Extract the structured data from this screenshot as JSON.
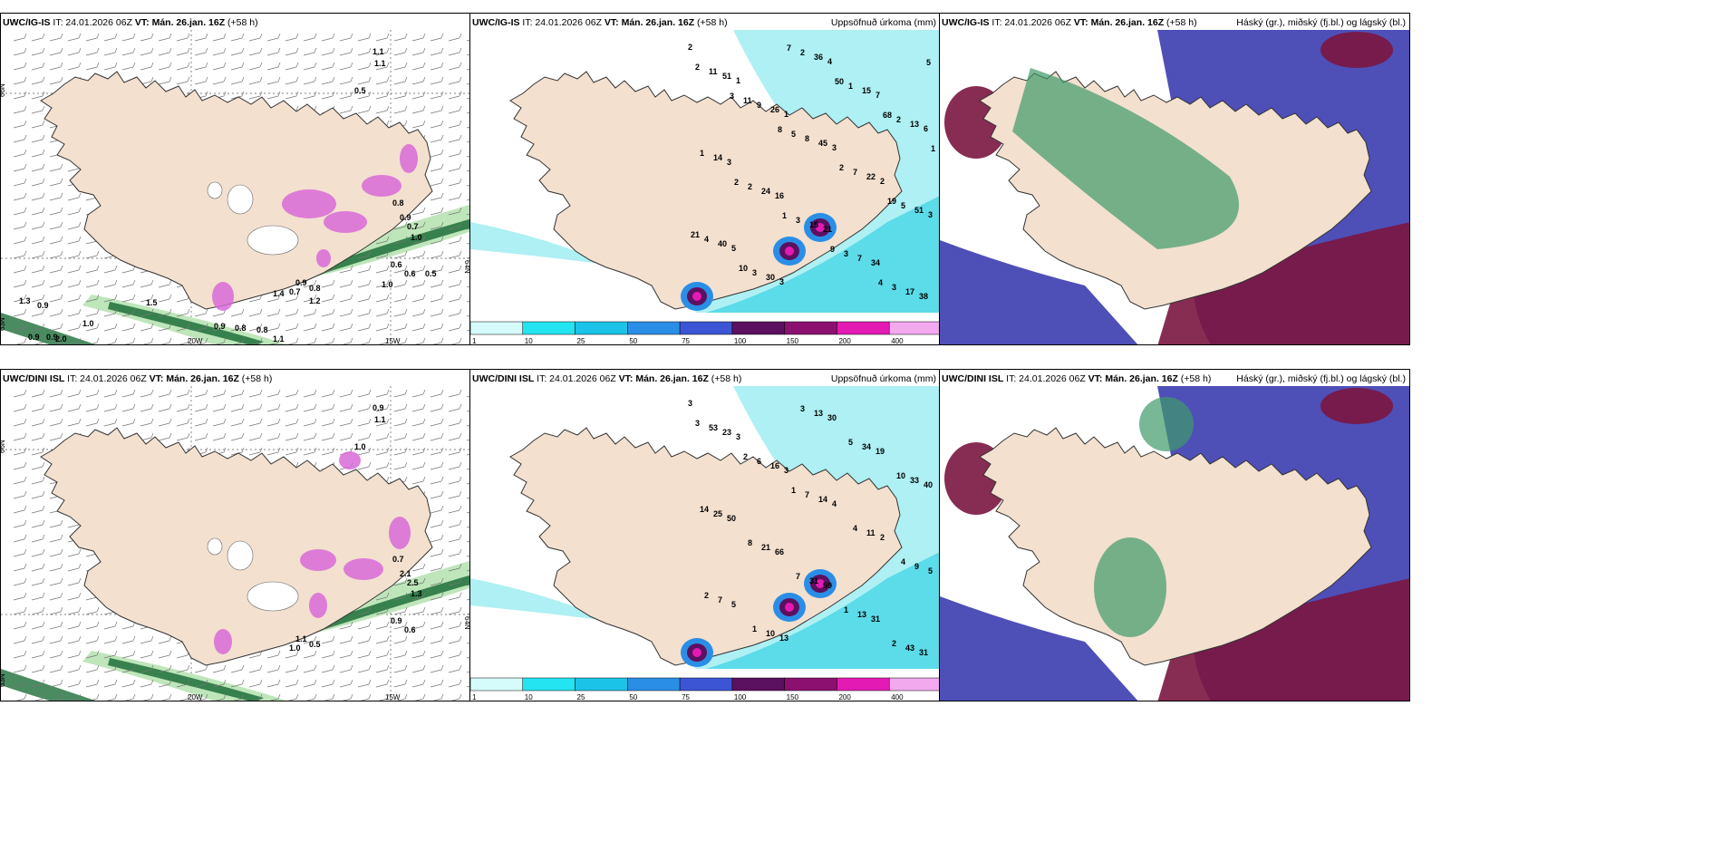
{
  "rows": [
    {
      "model": "UWC/IG-IS",
      "panels": [
        {
          "type": "wind",
          "it": "IT: 24.01.2026 06Z",
          "vt": "VT: Mán. 26.jan. 16Z",
          "lead": "(+58 h)",
          "title": "",
          "axis_labels": {
            "lat66": "66N",
            "lat64": "64N",
            "lat63": "63N",
            "lon20": "20W",
            "lon15": "15W"
          },
          "values": [
            "1.1",
            "1.1",
            "0.5",
            "0.8",
            "0.9",
            "0.7",
            "1.0",
            "0.6",
            "0.6",
            "0.9",
            "0.7",
            "0.8",
            "1.4",
            "1.3",
            "0.9",
            "1.0",
            "0.9",
            "0.9",
            "2.0",
            "0.9",
            "0.8",
            "0.8",
            "1.1",
            "1.0",
            "0.5",
            "1.5",
            "1.2"
          ]
        },
        {
          "type": "precip",
          "it": "IT: 24.01.2026 06Z",
          "vt": "VT: Mán. 26.jan. 16Z",
          "lead": "(+58 h)",
          "title": "Uppsöfnuð úrkoma (mm)",
          "values": [
            "2",
            "1",
            "1",
            "3",
            "2",
            "3",
            "5",
            "3",
            "4",
            "7",
            "6",
            "3",
            "16",
            "21",
            "34",
            "38",
            "51",
            "26",
            "45",
            "22",
            "51",
            "40",
            "30",
            "36",
            "15",
            "13",
            "14",
            "24",
            "15",
            "7",
            "17",
            "11",
            "9",
            "8",
            "7",
            "5",
            "4",
            "3",
            "2",
            "1",
            "2",
            "1",
            "2",
            "3",
            "3",
            "3",
            "2",
            "11",
            "5",
            "2",
            "19",
            "21",
            "10",
            "7",
            "50",
            "68",
            "1",
            "2",
            "1",
            "9",
            "4",
            "5",
            "3",
            "8"
          ]
        },
        {
          "type": "cloud",
          "it": "IT: 24.01.2026 06Z",
          "vt": "VT: Mán. 26.jan. 16Z",
          "lead": "(+58 h)",
          "title": "Háský (gr.), miðský (fj.bl.) og lágský (bl.)"
        }
      ]
    },
    {
      "model": "UWC/DINI ISL",
      "panels": [
        {
          "type": "wind",
          "it": "IT: 24.01.2026 06Z",
          "vt": "VT: Mán. 26.jan. 16Z",
          "lead": "(+58 h)",
          "title": "",
          "axis_labels": {
            "lat66": "66N",
            "lat64": "64N",
            "lat63": "63N",
            "lon20": "20W",
            "lon15": "15W"
          },
          "values": [
            "0.9",
            "1.1",
            "1.0",
            "0.7",
            "2.1",
            "2.5",
            "1.3",
            "0.9",
            "0.6",
            "1.1",
            "1.0",
            "0.5"
          ]
        },
        {
          "type": "precip",
          "it": "IT: 24.01.2026 06Z",
          "vt": "VT: Mán. 26.jan. 16Z",
          "lead": "(+58 h)",
          "title": "Uppsöfnuð úrkoma (mm)",
          "values": [
            "3",
            "3",
            "3",
            "4",
            "2",
            "5",
            "5",
            "13",
            "30",
            "19",
            "40",
            "50",
            "66",
            "59",
            "31",
            "31",
            "23",
            "16",
            "14",
            "11",
            "9",
            "7",
            "10",
            "13",
            "34",
            "33",
            "25",
            "21",
            "31",
            "13",
            "43",
            "53",
            "6",
            "7",
            "4",
            "4",
            "2",
            "1",
            "3",
            "5",
            "10",
            "14",
            "8",
            "7",
            "1",
            "2",
            "3",
            "2",
            "1"
          ]
        },
        {
          "type": "cloud",
          "it": "IT: 24.01.2026 06Z",
          "vt": "VT: Mán. 26.jan. 16Z",
          "lead": "(+58 h)",
          "title": "Háský (gr.), miðský (fj.bl.) og lágský (bl.)"
        }
      ]
    }
  ],
  "colorbar": {
    "ticks": [
      "1",
      "10",
      "25",
      "50",
      "75",
      "100",
      "150",
      "200",
      "400"
    ],
    "colors": [
      "#d6fbfb",
      "#24e4f1",
      "#1cc3e8",
      "#2b8ee6",
      "#3c55d4",
      "#5c1060",
      "#8b1070",
      "#e41ab4",
      "#f2a9ee"
    ]
  },
  "colors": {
    "land": "#f3e0cf",
    "sea_precip": "#aef0f4",
    "green_dark": "#1e6e3a",
    "green_light": "#b7e3b2",
    "magenta": "#d86ad8",
    "cloud_blue": "#4f4fb8",
    "cloud_maroon": "#7a1540",
    "cloud_green": "#3e9a6a"
  }
}
